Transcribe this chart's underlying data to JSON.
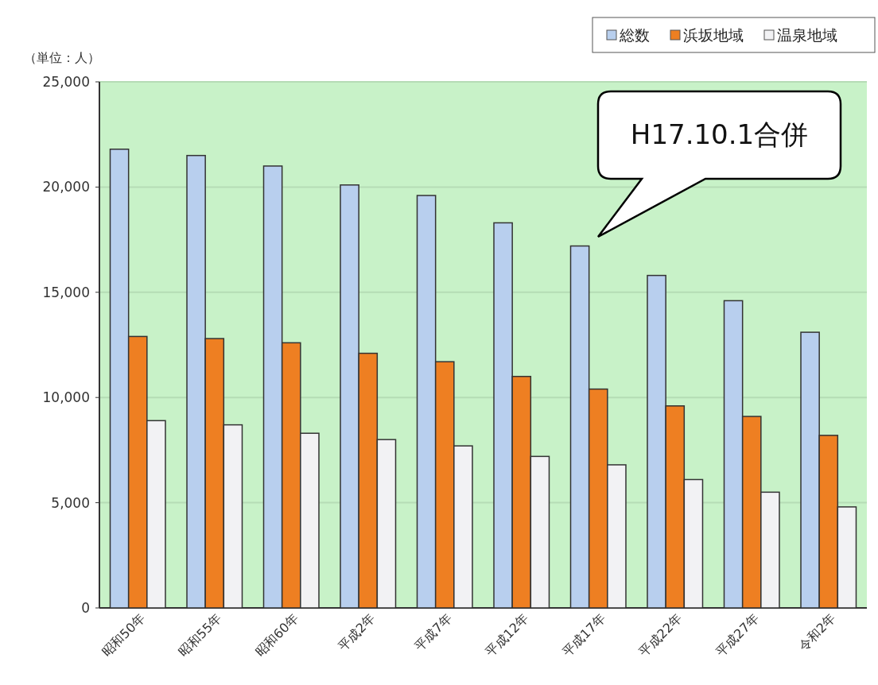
{
  "chart_data": {
    "type": "bar",
    "ylabel": "（単位：人）",
    "categories": [
      "昭和50年",
      "昭和55年",
      "昭和60年",
      "平成2年",
      "平成7年",
      "平成12年",
      "平成17年",
      "平成22年",
      "平成27年",
      "令和2年"
    ],
    "series": [
      {
        "name": "総数",
        "color": "#b8cfee",
        "values": [
          21800,
          21500,
          21000,
          20100,
          19600,
          18300,
          17200,
          15800,
          14600,
          13100
        ]
      },
      {
        "name": "浜坂地域",
        "color": "#ee7f22",
        "values": [
          12900,
          12800,
          12600,
          12100,
          11700,
          11000,
          10400,
          9600,
          9100,
          8200
        ]
      },
      {
        "name": "温泉地域",
        "color": "#f2f2f4",
        "values": [
          8900,
          8700,
          8300,
          8000,
          7700,
          7200,
          6800,
          6100,
          5500,
          4800
        ]
      }
    ],
    "ylim": [
      0,
      25000
    ],
    "yticks": [
      {
        "value": 0,
        "label": "0"
      },
      {
        "value": 5000,
        "label": "5,000"
      },
      {
        "value": 10000,
        "label": "10,000"
      },
      {
        "value": 15000,
        "label": "15,000"
      },
      {
        "value": 20000,
        "label": "20,000"
      },
      {
        "value": 25000,
        "label": "25,000"
      }
    ],
    "grid": "y",
    "legend": "top right",
    "annotations": [
      "H17.10.1合併"
    ]
  }
}
